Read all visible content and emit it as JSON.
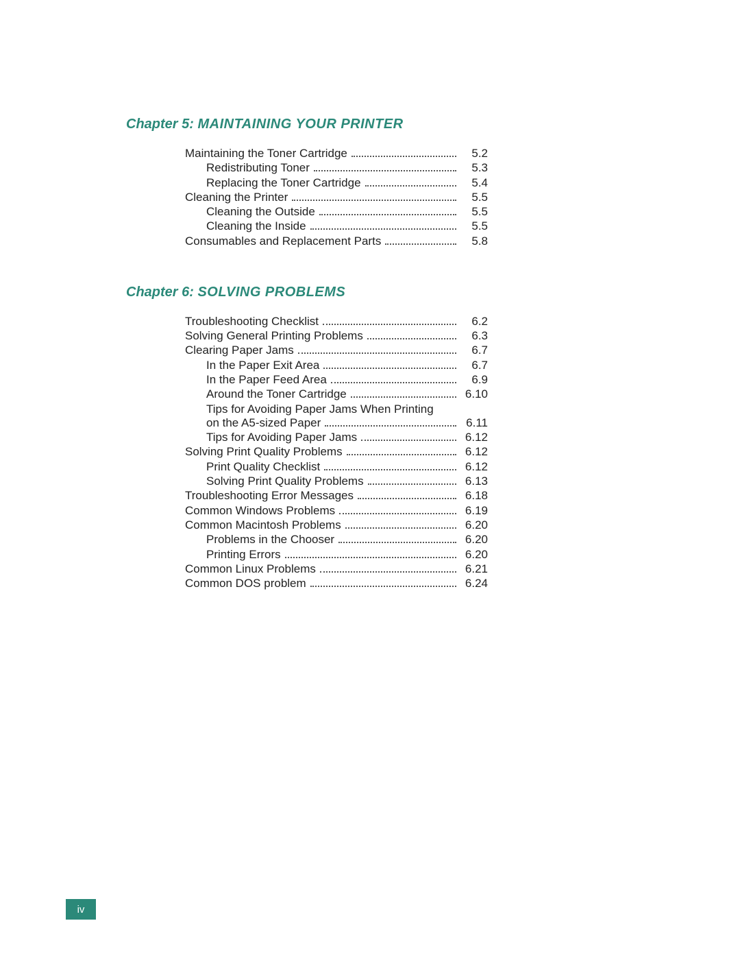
{
  "colors": {
    "heading": "#2b8979",
    "text": "#222222",
    "dots": "#555555",
    "pagenum_bg": "#2b8979",
    "pagenum_fg": "#ffffff",
    "page_bg": "#ffffff"
  },
  "typography": {
    "heading_fontsize": 20,
    "heading_style": "bold italic small-caps",
    "body_fontsize": 17,
    "font_family": "Verdana"
  },
  "page_number": "iv",
  "chapters": [
    {
      "label": "Chapter 5:",
      "title": "Maintaining Your Printer",
      "entries": [
        {
          "level": 0,
          "text": "Maintaining the Toner Cartridge",
          "page": "5.2"
        },
        {
          "level": 1,
          "text": "Redistributing Toner",
          "page": "5.3"
        },
        {
          "level": 1,
          "text": "Replacing the Toner Cartridge",
          "page": "5.4"
        },
        {
          "level": 0,
          "text": "Cleaning the Printer",
          "page": "5.5"
        },
        {
          "level": 1,
          "text": "Cleaning the Outside",
          "page": "5.5"
        },
        {
          "level": 1,
          "text": "Cleaning the Inside",
          "page": "5.5"
        },
        {
          "level": 0,
          "text": "Consumables and Replacement Parts",
          "page": "5.8"
        }
      ]
    },
    {
      "label": "Chapter 6:",
      "title": "Solving Problems",
      "entries": [
        {
          "level": 0,
          "text": "Troubleshooting Checklist",
          "page": "6.2"
        },
        {
          "level": 0,
          "text": "Solving General Printing Problems",
          "page": "6.3"
        },
        {
          "level": 0,
          "text": "Clearing Paper Jams",
          "page": "6.7"
        },
        {
          "level": 1,
          "text": "In the Paper Exit Area",
          "page": "6.7"
        },
        {
          "level": 1,
          "text": "In the Paper Feed Area",
          "page": "6.9"
        },
        {
          "level": 1,
          "text": "Around the Toner Cartridge",
          "page": "6.10"
        },
        {
          "level": 1,
          "text": "Tips for Avoiding Paper Jams When Printing on the A5-sized Paper",
          "page": "6.11",
          "wrap": true
        },
        {
          "level": 1,
          "text": "Tips for Avoiding Paper Jams",
          "page": "6.12"
        },
        {
          "level": 0,
          "text": "Solving Print Quality Problems",
          "page": "6.12"
        },
        {
          "level": 1,
          "text": "Print Quality Checklist",
          "page": "6.12"
        },
        {
          "level": 1,
          "text": "Solving Print Quality Problems",
          "page": "6.13"
        },
        {
          "level": 0,
          "text": "Troubleshooting Error Messages",
          "page": "6.18"
        },
        {
          "level": 0,
          "text": "Common Windows Problems",
          "page": "6.19"
        },
        {
          "level": 0,
          "text": "Common Macintosh Problems",
          "page": "6.20"
        },
        {
          "level": 1,
          "text": "Problems in the Chooser",
          "page": "6.20"
        },
        {
          "level": 1,
          "text": "Printing Errors",
          "page": "6.20"
        },
        {
          "level": 0,
          "text": "Common Linux Problems",
          "page": "6.21"
        },
        {
          "level": 0,
          "text": "Common DOS problem",
          "page": "6.24"
        }
      ]
    }
  ]
}
